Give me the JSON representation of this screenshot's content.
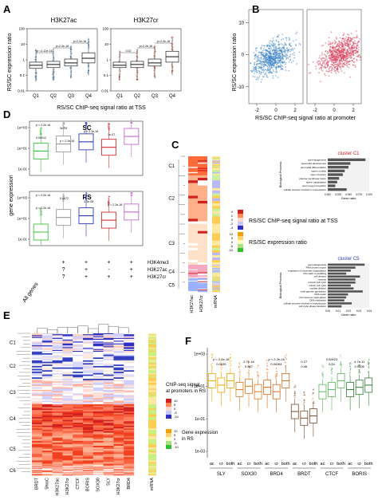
{
  "panel_letters": [
    "A",
    "B",
    "C",
    "D",
    "E",
    "F"
  ],
  "chart_data": [
    {
      "panel": "A",
      "type": "boxplot",
      "title": "H3K27ac",
      "categories": [
        "Q1",
        "Q2",
        "Q3",
        "Q4"
      ],
      "ylabel": "RS/SC expression ratio",
      "yticks": [
        "0.01",
        "0.1",
        "1",
        "10",
        "100"
      ],
      "xlabel_shared": "RS/SC  ChIP-seq signal ratio at TSS",
      "color": "#1f6fb5",
      "annotations": [
        "p <1.12e-16",
        "p<2.2e-16",
        "p<2.2e-16"
      ],
      "boxes": [
        {
          "cat": "Q1",
          "q1": -0.55,
          "med": -0.35,
          "q3": -0.15,
          "lo": -1.4,
          "hi": 0.7
        },
        {
          "cat": "Q2",
          "q1": -0.5,
          "med": -0.3,
          "q3": -0.1,
          "lo": -1.3,
          "hi": 0.75
        },
        {
          "cat": "Q3",
          "q1": -0.4,
          "med": -0.2,
          "q3": 0.05,
          "lo": -1.2,
          "hi": 0.9
        },
        {
          "cat": "Q4",
          "q1": -0.2,
          "med": 0.1,
          "q3": 0.45,
          "lo": -1.0,
          "hi": 1.4
        }
      ]
    },
    {
      "panel": "A",
      "type": "boxplot",
      "title": "H3K27cr",
      "categories": [
        "Q1",
        "Q2",
        "Q3",
        "Q4"
      ],
      "yticks": [
        "0.01",
        "0.1",
        "1",
        "10",
        "100"
      ],
      "color": "#d9463c",
      "annotations": [
        "0.02",
        "p<2.2e-16",
        "p<2.2e-16"
      ],
      "boxes": [
        {
          "cat": "Q1",
          "q1": -0.5,
          "med": -0.35,
          "q3": -0.15,
          "lo": -1.3,
          "hi": 0.6
        },
        {
          "cat": "Q2",
          "q1": -0.5,
          "med": -0.3,
          "q3": -0.1,
          "lo": -1.3,
          "hi": 0.7
        },
        {
          "cat": "Q3",
          "q1": -0.4,
          "med": -0.2,
          "q3": 0.05,
          "lo": -1.2,
          "hi": 0.9
        },
        {
          "cat": "Q4",
          "q1": -0.15,
          "med": 0.2,
          "q3": 0.55,
          "lo": -1.0,
          "hi": 1.5
        }
      ]
    },
    {
      "panel": "B",
      "type": "scatter",
      "ylabel": "RS/SC expression ratio",
      "xlabel": "RS/SC  ChIP-seq signal ratio at promoter",
      "yticks": [
        "-10",
        "0",
        "10"
      ],
      "xticks": [
        "-2",
        "0",
        "2"
      ],
      "series": [
        {
          "color": "#2e7bc4"
        },
        {
          "color": "#d62d4b"
        }
      ]
    },
    {
      "panel": "D",
      "type": "boxplot",
      "ylabel": "gene expression",
      "facets": [
        "SC",
        "RS"
      ],
      "yticks": [
        "1e-01",
        "1e+01",
        "1e+03"
      ],
      "row_labels": [
        "H3K4me3",
        "H3K27ac",
        "H3K27cr"
      ],
      "group_label": "All genes",
      "columns": [
        {
          "signs": [
            "",
            "",
            ""
          ],
          "color": "#3cc13c"
        },
        {
          "signs": [
            "+",
            "?",
            "?"
          ],
          "color": "#9a9a9a"
        },
        {
          "signs": [
            "+",
            "+",
            "+"
          ],
          "color": "#2d3ab8"
        },
        {
          "signs": [
            "+",
            "-",
            "+"
          ],
          "color": "#d12e2e"
        },
        {
          "signs": [
            "+",
            "+",
            "+"
          ],
          "color": "#c46ad1"
        }
      ],
      "annotations_sc": [
        "p < 2.2e-16",
        "3e-09",
        "p < 2.2e-16",
        "1e-07",
        "0.00012",
        "p < 2.2e-16"
      ],
      "annotations_rs": [
        "p < 2.2e-16",
        "0.0072",
        "3.3e-06",
        "p < 2.2e-16",
        "p < 2.2e-16"
      ]
    },
    {
      "panel": "C",
      "type": "heatmap",
      "clusters": [
        "C1",
        "C2",
        "C3",
        "C4",
        "C5"
      ],
      "columns": [
        "H3K27ac",
        "H3K27cr",
        "mRNA"
      ],
      "legend1_title": "RS/SC ChIP-seq signal ratio at TSS",
      "legend1_ticks": [
        "4",
        "2",
        "0",
        "-2",
        "-4"
      ],
      "legend2_title": "RS/SC expression ratio",
      "legend2_ticks": [
        "10",
        "5",
        "0",
        "-5",
        "-10"
      ],
      "bars_c1": {
        "title": "cluster C1",
        "ylabel": "Biological Process",
        "xlabel": "Gene ratio",
        "xticks": [
          "0.000",
          "0.025",
          "0.050",
          "0.075",
          "0.100"
        ],
        "terms": [
          "spermatogenesis",
          "spermatid development",
          "spermatid differentiation",
          "sperm motility",
          "sperm function",
          "plasma membrane fusion",
          "sperm capacitation",
          "sperm-egg recognition",
          "cellular process involved in reproduction"
        ],
        "ratios": [
          0.1,
          0.06,
          0.055,
          0.045,
          0.04,
          0.03,
          0.025,
          0.02,
          0.05
        ]
      },
      "bars_c5": {
        "title": "cluster C5",
        "ylabel": "Biological Process",
        "xlabel": "Gene ratio",
        "xticks": [
          "0.00",
          "0.01",
          "0.02",
          "0.03",
          "0.04"
        ],
        "terms": [
          "spermatogenesis",
          "RNA protein export",
          "regulation of chromatin organization",
          "chromatin remodeling",
          "cell division",
          "meiosis",
          "meiotic cell cycle",
          "mitotic cell cycle",
          "nuclear division",
          "male gamete generation",
          "DNA repair",
          "chromosome segregation",
          "DNA replication",
          "cellular process involved in reproduction",
          "cell cycle phase transition"
        ],
        "ratios": [
          0.04,
          0.03,
          0.025,
          0.02,
          0.035,
          0.03,
          0.03,
          0.025,
          0.028,
          0.038,
          0.022,
          0.02,
          0.018,
          0.026,
          0.015
        ]
      }
    },
    {
      "panel": "E",
      "type": "heatmap",
      "clusters": [
        "C1",
        "C2",
        "C3",
        "C4",
        "C5",
        "C6"
      ],
      "columns": [
        "BRDT",
        "5hmC",
        "H3K27ac",
        "H3K27cr",
        "CTCF",
        "BORIS",
        "SOX30",
        "SLY",
        "H3K27cr",
        "BRD4",
        "mRNA"
      ],
      "legend1_title": "ChIP-seq signal at promoters in RS",
      "legend1_ticks": [
        "10",
        "5",
        "0",
        "-5",
        "-10"
      ],
      "legend2_title": "Gene expression in RS",
      "legend2_ticks": [
        "10",
        "5",
        "0",
        "-5",
        "-10"
      ]
    },
    {
      "panel": "F",
      "type": "boxplot",
      "yticks": [
        "1e-03",
        "1e-01",
        "1e+01",
        "1e+03"
      ],
      "groups": [
        "SLY",
        "SOX30",
        "BRD4",
        "BRDT",
        "CTCF",
        "BORIS"
      ],
      "sub_labels": [
        "ac",
        "cr",
        "both"
      ],
      "group_colors": [
        "#f0a500",
        "#e07a1e",
        "#d2691e",
        "#7a4a2a",
        "#5cb85c",
        "#2f7d32"
      ],
      "annotations": [
        "p < 2.2e-16",
        "0.0039",
        "2.7e-16",
        "0.067",
        "p < 2.2e-16",
        "0.00061",
        "0.27",
        "0.46",
        "0.00023",
        "0.24",
        "4.7e-11",
        "0.0006"
      ]
    }
  ]
}
